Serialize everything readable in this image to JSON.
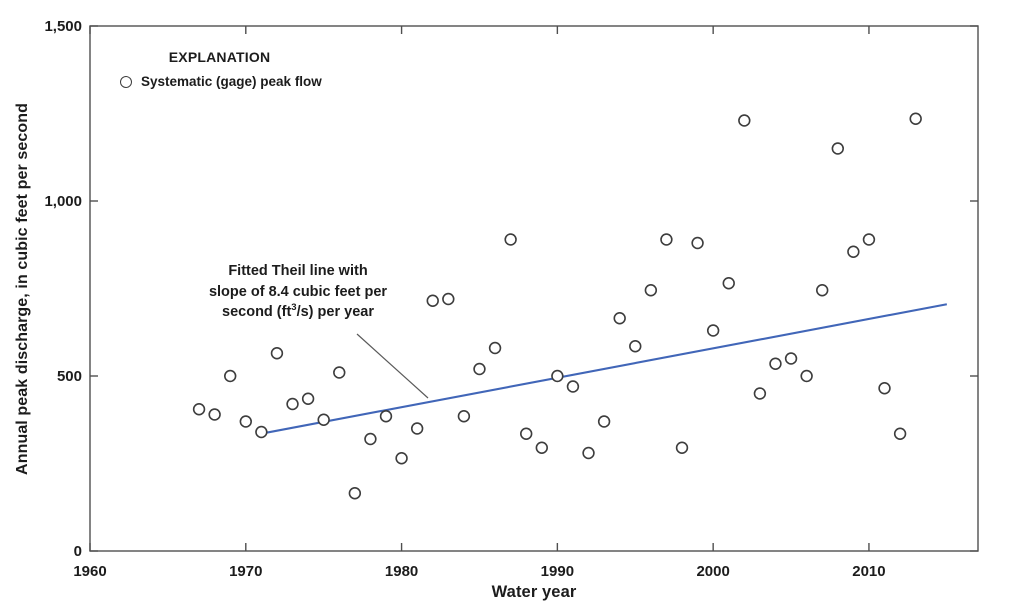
{
  "figure": {
    "y_axis_label": "Annual peak discharge, in cubic feet per second",
    "x_axis_label": "Water year"
  },
  "legend": {
    "title": "EXPLANATION",
    "item_label": "Systematic (gage) peak flow",
    "marker": "open-circle"
  },
  "annotation": {
    "line1": "Fitted Theil line with",
    "line2": "slope of 8.4 cubic feet per",
    "line3_pre": "second (ft",
    "line3_sup": "3",
    "line3_post": "/s) per year"
  },
  "colors": {
    "trend_line": "#4166b8",
    "marker_outline": "#3d3d3d",
    "axis": "#4f4f4f",
    "text": "#1c1c1c",
    "leader_line": "#5a5a5a"
  },
  "chart_data": {
    "type": "scatter",
    "title": "",
    "xlabel": "Water year",
    "ylabel": "Annual peak discharge, in cubic feet per second",
    "xlim": [
      1960,
      2017
    ],
    "ylim": [
      0,
      1500
    ],
    "grid": false,
    "legend_position": "upper-left-inside",
    "x_tick_values": [
      1960,
      1970,
      1980,
      1990,
      2000,
      2010
    ],
    "x_tick_labels": [
      "1960",
      "1970",
      "1980",
      "1990",
      "2000",
      "2010"
    ],
    "y_tick_values": [
      0,
      500,
      1000,
      1500
    ],
    "y_tick_labels": [
      "0",
      "500",
      "1,000",
      "1,500"
    ],
    "series": [
      {
        "name": "Systematic (gage) peak flow",
        "marker": "open-circle",
        "points": [
          [
            1967,
            405
          ],
          [
            1968,
            390
          ],
          [
            1969,
            500
          ],
          [
            1970,
            370
          ],
          [
            1971,
            340
          ],
          [
            1972,
            565
          ],
          [
            1973,
            420
          ],
          [
            1974,
            435
          ],
          [
            1975,
            375
          ],
          [
            1976,
            510
          ],
          [
            1977,
            165
          ],
          [
            1978,
            320
          ],
          [
            1979,
            385
          ],
          [
            1980,
            265
          ],
          [
            1981,
            350
          ],
          [
            1982,
            715
          ],
          [
            1983,
            720
          ],
          [
            1984,
            385
          ],
          [
            1985,
            520
          ],
          [
            1986,
            580
          ],
          [
            1987,
            890
          ],
          [
            1988,
            335
          ],
          [
            1989,
            295
          ],
          [
            1990,
            500
          ],
          [
            1991,
            470
          ],
          [
            1992,
            280
          ],
          [
            1993,
            370
          ],
          [
            1994,
            665
          ],
          [
            1995,
            585
          ],
          [
            1996,
            745
          ],
          [
            1997,
            890
          ],
          [
            1998,
            295
          ],
          [
            1999,
            880
          ],
          [
            2000,
            630
          ],
          [
            2001,
            765
          ],
          [
            2002,
            1230
          ],
          [
            2003,
            450
          ],
          [
            2004,
            535
          ],
          [
            2005,
            550
          ],
          [
            2006,
            500
          ],
          [
            2007,
            745
          ],
          [
            2008,
            1150
          ],
          [
            2009,
            855
          ],
          [
            2010,
            890
          ],
          [
            2011,
            465
          ],
          [
            2012,
            335
          ],
          [
            2013,
            1235
          ]
        ]
      }
    ],
    "trend_line": {
      "label": "Fitted Theil line",
      "slope": 8.4,
      "slope_units": "cubic feet per second (ft3/s) per year",
      "x1": 1971.2,
      "y1": 337,
      "x2": 2015.0,
      "y2": 705
    }
  }
}
